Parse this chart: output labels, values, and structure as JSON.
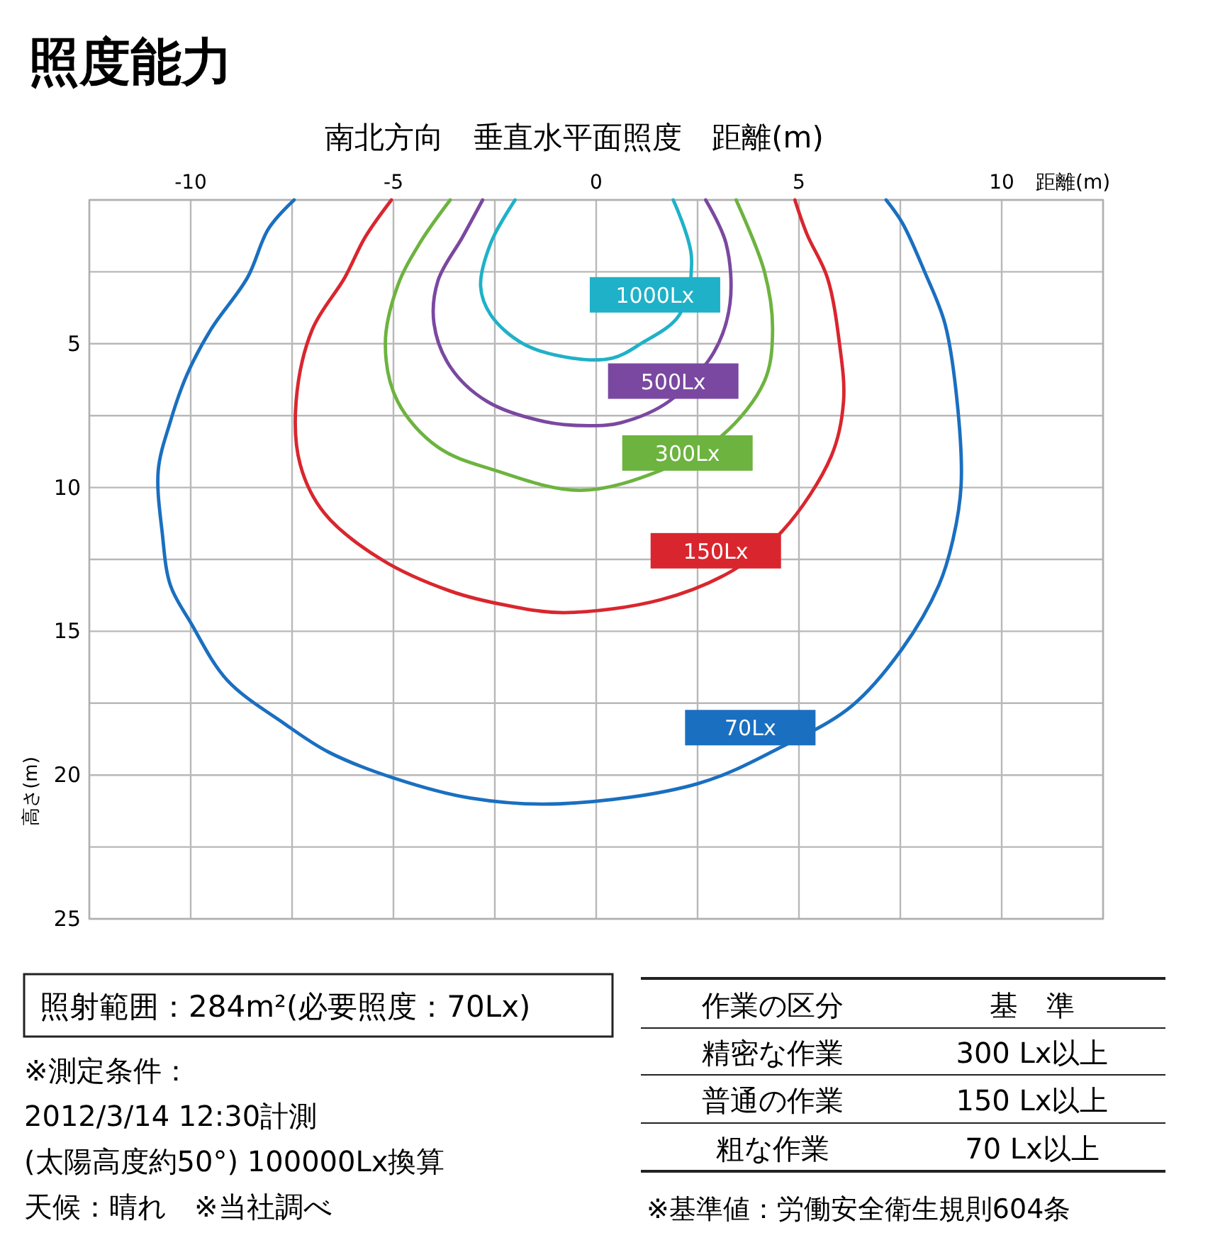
{
  "chart_data": {
    "type": "line",
    "title": "照度能力",
    "subtitle": "南北方向　垂直水平面照度　距離(m)",
    "xlabel": "距離(m)",
    "ylabel": "高さ(m)",
    "xlim": [
      -12.5,
      12.5
    ],
    "xticks": [
      {
        "value": -12.5,
        "label": null
      },
      -10,
      {
        "value": -7.5,
        "label": null
      },
      -5,
      {
        "value": -2.5,
        "label": null
      },
      0,
      {
        "value": 2.5,
        "label": null
      },
      5,
      {
        "value": 7.5,
        "label": null
      },
      10,
      {
        "value": 12.5,
        "label": null
      }
    ],
    "ylim": [
      25,
      0
    ],
    "yticks": [
      {
        "value": 0,
        "label": null
      },
      {
        "value": 2.5,
        "label": null
      },
      5,
      {
        "value": 7.5,
        "label": null
      },
      10,
      {
        "value": 12.5,
        "label": null
      },
      15,
      {
        "value": 17.5,
        "label": null
      },
      20,
      {
        "value": 22.5,
        "label": null
      },
      25
    ],
    "grid": true,
    "legend": false,
    "marker": "none",
    "line_style": "solid",
    "series": [
      {
        "name": "1000Lx",
        "color": "#1fb1c8",
        "x": [
          -2.0,
          -2.6,
          -2.85,
          -2.6,
          -1.8,
          -0.6,
          0.4,
          1.1,
          2.05,
          2.35,
          1.9
        ],
        "values": [
          0,
          1.5,
          3.0,
          4.0,
          5.0,
          5.5,
          5.5,
          5.0,
          4.0,
          2.0,
          0
        ]
      },
      {
        "name": "500Lx",
        "color": "#7a48a0",
        "x": [
          -2.8,
          -3.3,
          -3.9,
          -4.0,
          -3.6,
          -2.7,
          -1.3,
          -0.2,
          0.6,
          1.8,
          2.9,
          3.3,
          3.2,
          2.7
        ],
        "values": [
          0,
          1.3,
          2.8,
          4.3,
          5.8,
          7.0,
          7.7,
          7.85,
          7.75,
          7.0,
          5.3,
          3.6,
          1.5,
          0
        ]
      },
      {
        "name": "300Lx",
        "color": "#6db33f",
        "x": [
          -3.6,
          -4.35,
          -4.9,
          -5.2,
          -4.9,
          -3.9,
          -2.5,
          -0.4,
          1.6,
          3.1,
          4.15,
          4.35,
          4.15,
          3.45
        ],
        "values": [
          0,
          1.5,
          3.0,
          5.0,
          7.0,
          8.6,
          9.4,
          10.1,
          9.4,
          8.2,
          6.3,
          4.5,
          2.5,
          0
        ]
      },
      {
        "name": "150Lx",
        "color": "#d9262e",
        "x": [
          -5.05,
          -5.7,
          -6.2,
          -7.0,
          -7.4,
          -7.3,
          -6.7,
          -5.3,
          -3.6,
          -2.2,
          -0.8,
          1.6,
          3.35,
          4.6,
          5.8,
          6.1,
          6.0,
          5.7,
          5.2,
          4.9
        ],
        "values": [
          0,
          1.3,
          2.7,
          4.5,
          7.0,
          9.2,
          10.9,
          12.5,
          13.6,
          14.1,
          14.35,
          13.9,
          12.9,
          11.5,
          8.9,
          7.0,
          5.0,
          2.7,
          1.2,
          0
        ]
      },
      {
        "name": "70Lx",
        "color": "#1a6fc0",
        "x": [
          -7.45,
          -8.08,
          -8.6,
          -9.5,
          -10.1,
          -10.5,
          -10.8,
          -10.7,
          -10.5,
          -10.0,
          -9.1,
          -7.7,
          -6.6,
          -5.0,
          -3.1,
          -0.9,
          2.5,
          4.6,
          6.3,
          7.55,
          8.45,
          8.8,
          9.0,
          8.9,
          8.6,
          8.1,
          7.55,
          7.15
        ],
        "values": [
          0,
          1.0,
          2.7,
          4.5,
          6.1,
          7.7,
          9.4,
          11.6,
          13.4,
          14.7,
          16.7,
          18.2,
          19.2,
          20.1,
          20.8,
          21.0,
          20.3,
          19.0,
          17.6,
          15.6,
          13.4,
          11.8,
          9.9,
          7.0,
          4.3,
          2.5,
          0.8,
          0
        ]
      }
    ],
    "annotations": [
      "照射範囲：284m²(必要照度：70Lx)",
      "※測定条件：",
      "2012/3/14 12:30計測",
      "(太陽高度約50°) 100000Lx換算",
      "天候：晴れ　※当社調べ",
      "作業の区分",
      "基　準",
      "精密な作業",
      "300 Lx以上",
      "普通の作業",
      "150 Lx以上",
      "粗な作業",
      "70 Lx以上",
      "※基準値：労働安全衛生規則604条"
    ]
  }
}
